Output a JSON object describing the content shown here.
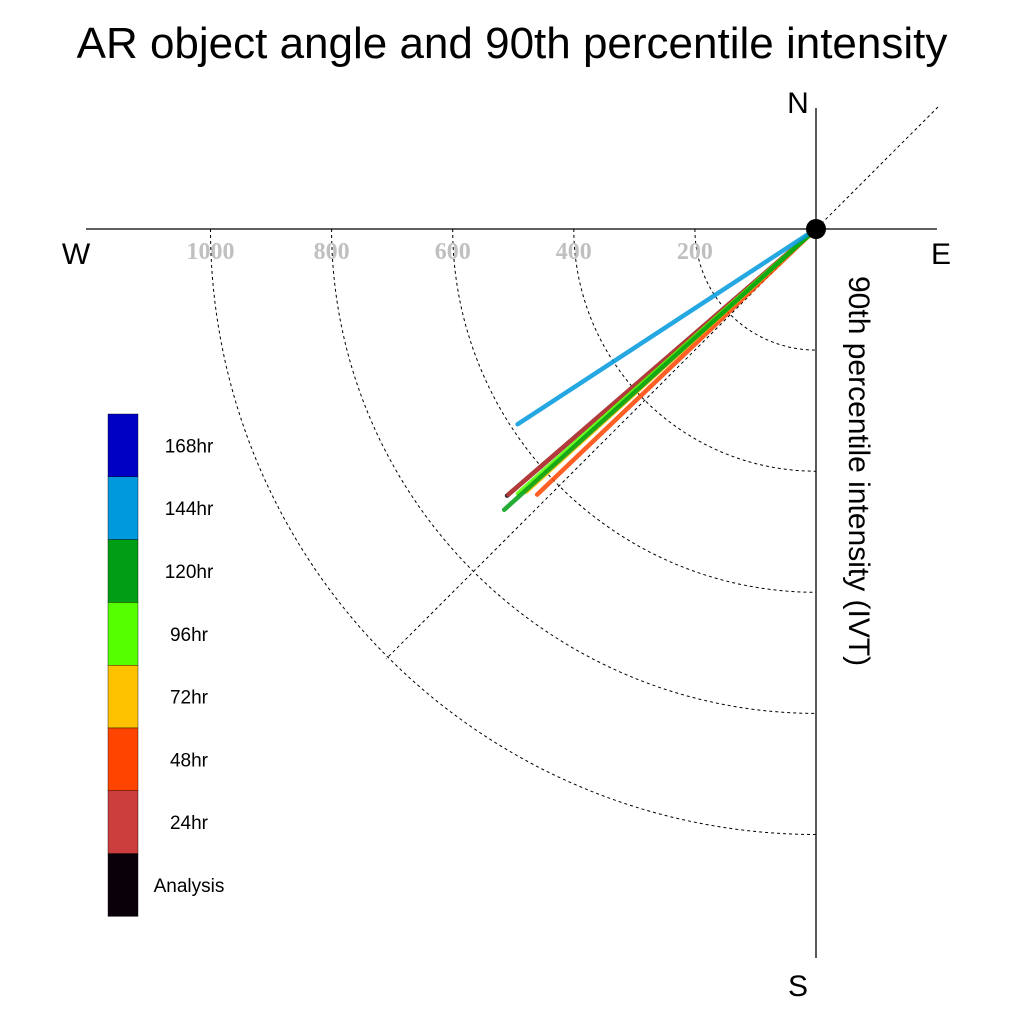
{
  "title": "AR object angle and 90th percentile intensity",
  "compass": {
    "north": "N",
    "south": "S",
    "east": "E",
    "west": "W"
  },
  "chart_data": {
    "type": "polar-vector",
    "title": "AR object angle and 90th percentile intensity",
    "ylabel": "90th percentile intensity (IVT)",
    "radial_ticks": [
      200,
      400,
      600,
      800,
      1000
    ],
    "radial_tick_labels": [
      "200",
      "400",
      "600",
      "800",
      "1000"
    ],
    "r_max": 1200,
    "angle_reference": "angle measured clockwise from west (degrees below W axis)",
    "grid": true,
    "legend_position": "left",
    "series": [
      {
        "name": "Analysis",
        "color": "#0a000a",
        "angle_deg": 40.8,
        "intensity": 674
      },
      {
        "name": "24hr",
        "color": "#cc3d3d",
        "angle_deg": 40.8,
        "intensity": 671
      },
      {
        "name": "48hr",
        "color": "#ff4400",
        "angle_deg": 43.6,
        "intensity": 636
      },
      {
        "name": "72hr",
        "color": "#ffc200",
        "angle_deg": 42.2,
        "intensity": 646
      },
      {
        "name": "96hr",
        "color": "#55ff00",
        "angle_deg": 41.6,
        "intensity": 658
      },
      {
        "name": "120hr",
        "color": "#009e15",
        "angle_deg": 42.0,
        "intensity": 693
      },
      {
        "name": "144hr",
        "color": "#0099dd",
        "angle_deg": 33.2,
        "intensity": 589
      },
      {
        "name": "168hr",
        "color": "#0000c4",
        "angle_deg": null,
        "intensity": null
      }
    ],
    "legend_order": [
      "168hr",
      "144hr",
      "120hr",
      "96hr",
      "72hr",
      "48hr",
      "24hr",
      "Analysis"
    ]
  }
}
